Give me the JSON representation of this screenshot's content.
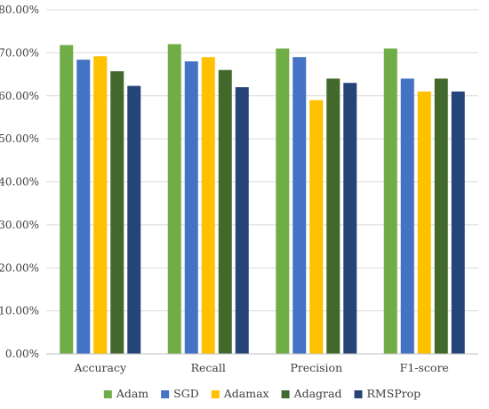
{
  "chart_data": {
    "type": "bar",
    "categories": [
      "Accuracy",
      "Recall",
      "Precision",
      "F1-score"
    ],
    "series": [
      {
        "name": "Adam",
        "color": "#70ad47",
        "values": [
          71.8,
          72.0,
          71.0,
          71.0
        ]
      },
      {
        "name": "SGD",
        "color": "#4472c4",
        "values": [
          68.4,
          68.0,
          69.0,
          64.0
        ]
      },
      {
        "name": "Adamax",
        "color": "#ffc000",
        "values": [
          69.2,
          69.0,
          59.0,
          61.0
        ]
      },
      {
        "name": "Adagrad",
        "color": "#43682b",
        "values": [
          65.7,
          66.0,
          64.0,
          64.0
        ]
      },
      {
        "name": "RMSProp",
        "color": "#264478",
        "values": [
          62.3,
          62.0,
          63.0,
          61.0
        ]
      }
    ],
    "yticks": [
      "0.00%",
      "10.00%",
      "20.00%",
      "30.00%",
      "40.00%",
      "50.00%",
      "60.00%",
      "70.00%",
      "80.00%"
    ],
    "ylim": [
      0,
      80
    ],
    "grid": true,
    "legend_position": "bottom"
  }
}
